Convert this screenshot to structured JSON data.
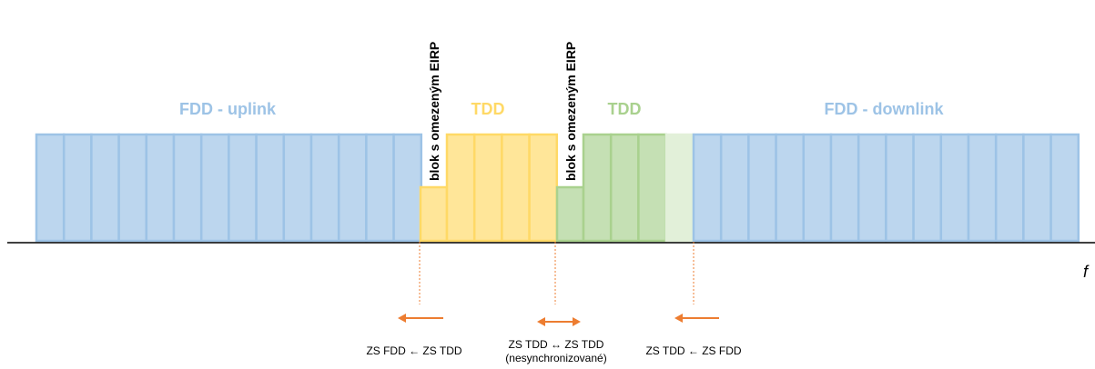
{
  "diagram": {
    "band_labels": {
      "fdd_uplink": "FDD - uplink",
      "tdd_a": "TDD",
      "tdd_b": "TDD",
      "fdd_downlink": "FDD - downlink"
    },
    "restricted_block_label_1": "blok s omezeným EIRP",
    "restricted_block_label_2": "blok s omezeným EIRP",
    "axis_label": "f",
    "interference": {
      "left": "ZS FDD ← ZS TDD",
      "middle_line1": "ZS TDD ↔ ZS TDD",
      "middle_line2": "(nesynchronizované)",
      "right": "ZS TDD ← ZS FDD"
    },
    "colors": {
      "fdd_fill": "#bcd6ee",
      "fdd_stroke": "#9dc3e6",
      "fdd_text": "#9dc3e6",
      "tdd_yellow_fill": "#ffe699",
      "tdd_yellow_stroke": "#ffd966",
      "tdd_yellow_text": "#ffd966",
      "tdd_green_fill": "#c5e0b4",
      "tdd_green_stroke": "#a9d18e",
      "tdd_green_text": "#a9d18e",
      "guard_fill": "#e2f0d9",
      "arrow": "#ed7d31",
      "axis": "#000000"
    }
  }
}
